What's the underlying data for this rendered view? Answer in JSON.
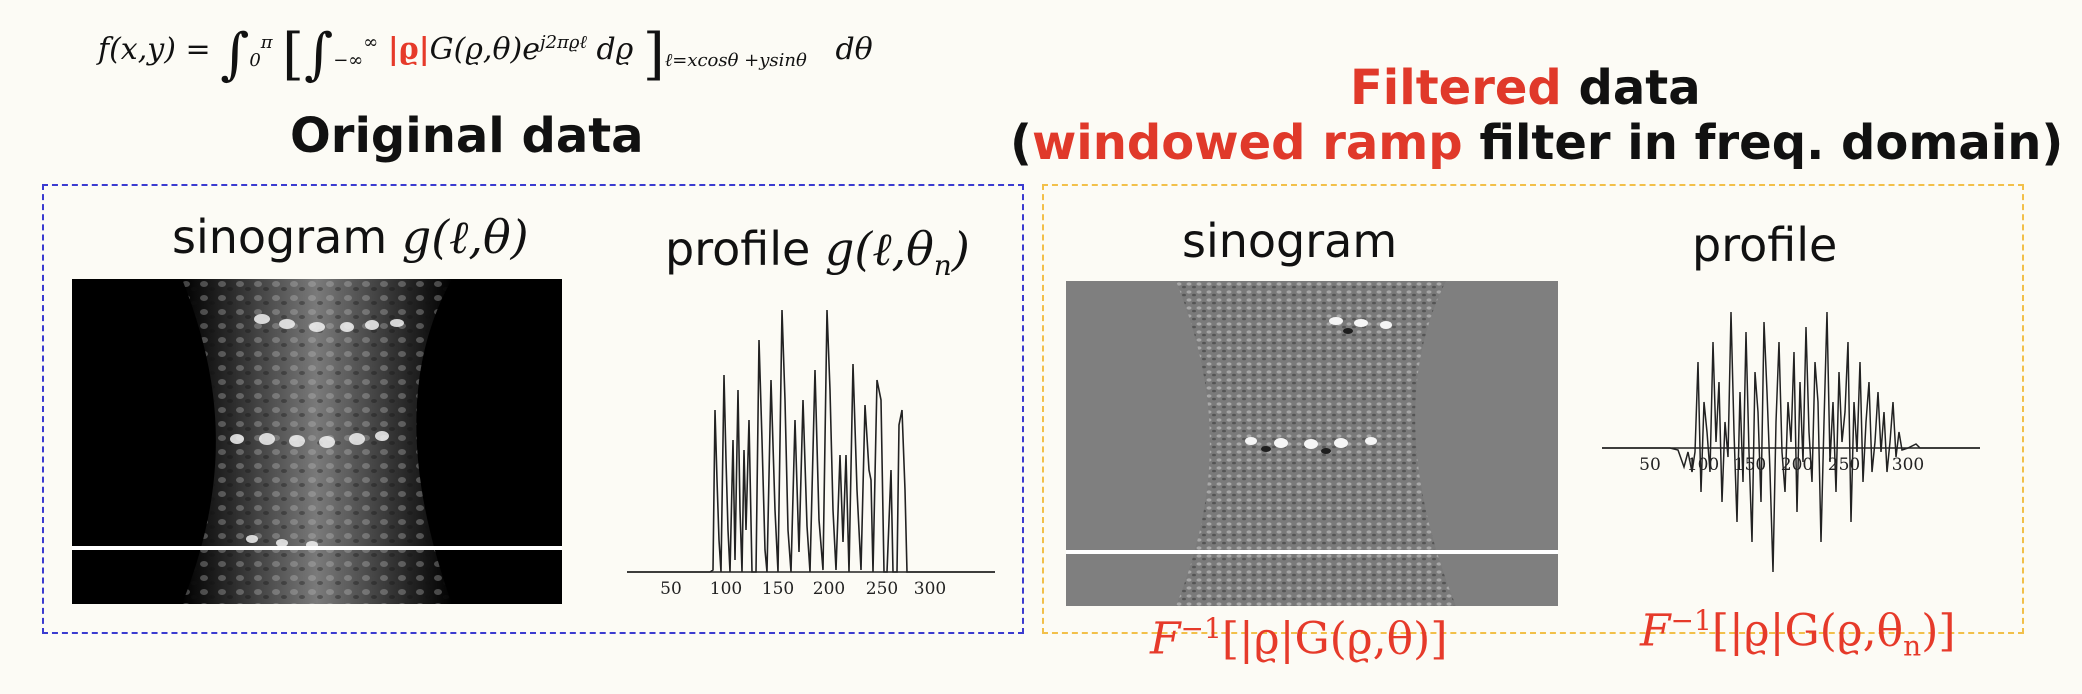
{
  "formula": {
    "lhs": "f(x,y) = ",
    "integral_outer": "∫",
    "outer_upper": "π",
    "outer_lower": "0",
    "bracket_open": "[",
    "integral_inner": "∫",
    "inner_upper": "∞",
    "inner_lower": "−∞",
    "abs_rho": "|ϱ|",
    "integrand": "G(ϱ,θ)e",
    "exponent": "j2πϱℓ",
    "d_rho": " dϱ",
    "bracket_close": "]",
    "substitution": "ℓ=xcosθ  +ysinθ",
    "d_theta": "dθ"
  },
  "left_panel": {
    "heading": "Original data",
    "sinogram_label": "sinogram ",
    "sinogram_math": "g(ℓ,θ)",
    "profile_label": "profile ",
    "profile_math": "g(ℓ,θ",
    "profile_math_sub": "n",
    "profile_math_close": ")",
    "box_color": "#3b3bd0"
  },
  "right_panel": {
    "heading_red": "Filtered",
    "heading_black": " data",
    "subheading_open": "(",
    "subheading_red": "windowed ramp",
    "subheading_black": " filter in freq. domain)",
    "sinogram_label": "sinogram",
    "profile_label": "profile",
    "sinogram_caption": "F",
    "sinogram_caption_sup": "−1",
    "sinogram_caption_rest": "[|ϱ|G(ϱ,θ)]",
    "profile_caption": "F",
    "profile_caption_sup": "−1",
    "profile_caption_rest": "[|ϱ|G(ϱ,θ",
    "profile_caption_sub": "n",
    "profile_caption_close": ")]",
    "box_color": "#f2c04a"
  },
  "original_profile_plot": {
    "x_ticks": [
      "50",
      "100",
      "150",
      "200",
      "250",
      "300"
    ]
  },
  "filtered_profile_plot": {
    "x_ticks": [
      "50",
      "100",
      "150",
      "200",
      "250",
      "300"
    ]
  },
  "colors": {
    "accent_red": "#e0392a",
    "background": "#fcfbf5"
  }
}
